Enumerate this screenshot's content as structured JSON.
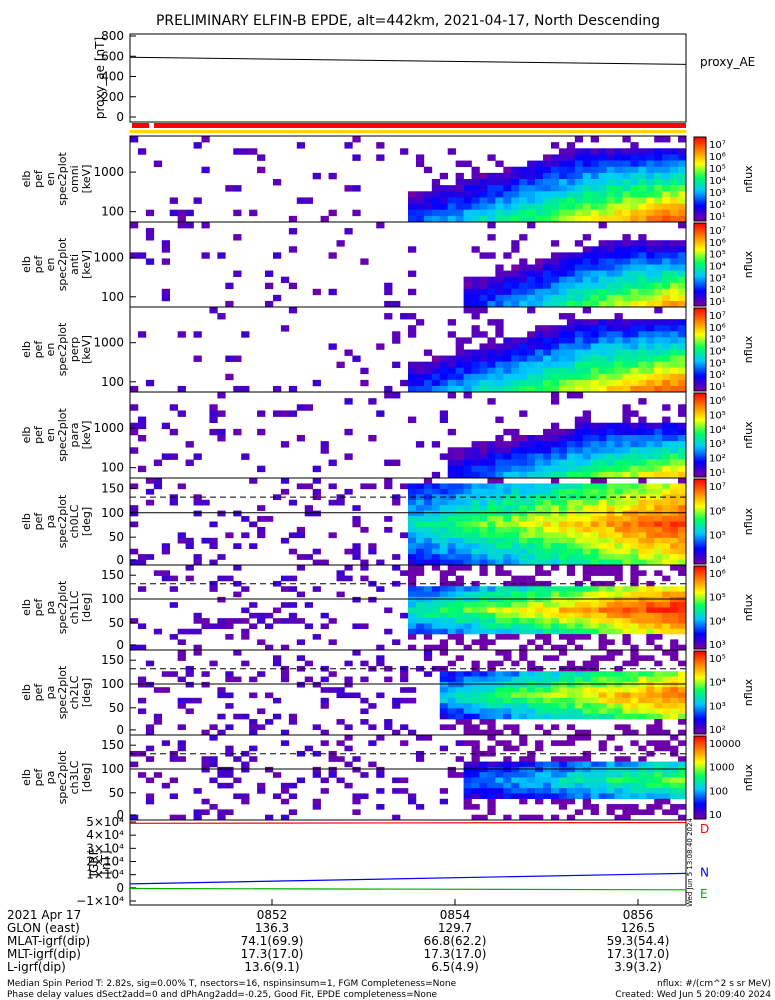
{
  "title": "PRELIMINARY ELFIN-B EPDE, alt=442km, 2021-04-17, North Descending",
  "chart_data": [
    {
      "type": "line",
      "ylabel": "proxy_ae [nT]",
      "legend": "proxy_AE",
      "yticks": [
        "800",
        "600",
        "400",
        "200",
        "0"
      ],
      "ylim": [
        0,
        800
      ],
      "x_minutes": [
        0,
        10
      ],
      "y": [
        590,
        520
      ]
    },
    {
      "type": "heatmap",
      "ylabel": "elb pef en spec2plot omni [keV]",
      "yticks": [
        "1000",
        "100"
      ],
      "colorbar": {
        "label": "nflux",
        "ticks": [
          "10⁷",
          "10⁶",
          "10⁵",
          "10⁴",
          "10³",
          "10²",
          "10¹"
        ]
      }
    },
    {
      "type": "heatmap",
      "ylabel": "elb pef en spec2plot anti [keV]",
      "yticks": [
        "1000",
        "100"
      ],
      "colorbar": {
        "label": "nflux",
        "ticks": [
          "10⁷",
          "10⁶",
          "10⁵",
          "10⁴",
          "10³",
          "10²",
          "10¹"
        ]
      }
    },
    {
      "type": "heatmap",
      "ylabel": "elb pef en spec2plot perp [keV]",
      "yticks": [
        "1000",
        "100"
      ],
      "colorbar": {
        "label": "nflux",
        "ticks": [
          "10⁷",
          "10⁶",
          "10⁵",
          "10⁴",
          "10³",
          "10²",
          "10¹"
        ]
      }
    },
    {
      "type": "heatmap",
      "ylabel": "elb pef en spec2plot para [keV]",
      "yticks": [
        "1000",
        "100"
      ],
      "colorbar": {
        "label": "nflux",
        "ticks": [
          "10⁶",
          "10⁵",
          "10⁴",
          "10³",
          "10²",
          "10¹"
        ]
      }
    },
    {
      "type": "heatmap",
      "ylabel": "elb pef pa spec2plot ch0LC [deg]",
      "yticks": [
        "150",
        "100",
        "50",
        "0"
      ],
      "colorbar": {
        "label": "nflux",
        "ticks": [
          "10⁷",
          "10⁶",
          "10⁵",
          "10⁴"
        ]
      }
    },
    {
      "type": "heatmap",
      "ylabel": "elb pef pa spec2plot ch1LC [deg]",
      "yticks": [
        "150",
        "100",
        "50",
        "0"
      ],
      "colorbar": {
        "label": "nflux",
        "ticks": [
          "10⁶",
          "10⁵",
          "10⁴",
          "10³"
        ]
      }
    },
    {
      "type": "heatmap",
      "ylabel": "elb pef pa spec2plot ch2LC [deg]",
      "yticks": [
        "150",
        "100",
        "50",
        "0"
      ],
      "colorbar": {
        "label": "nflux",
        "ticks": [
          "10⁵",
          "10⁴",
          "10³",
          "10²"
        ]
      }
    },
    {
      "type": "heatmap",
      "ylabel": "elb pef pa spec2plot ch3LC [deg]",
      "yticks": [
        "150",
        "100",
        "50",
        "0"
      ],
      "colorbar": {
        "label": "nflux",
        "ticks": [
          "10000",
          "1000",
          "100",
          "10"
        ]
      }
    },
    {
      "type": "line",
      "ylabel": "IGRF [nT]",
      "yticks": [
        "5×10⁴",
        "4×10⁴",
        "3×10⁴",
        "2×10⁴",
        "1×10⁴",
        "0",
        "−1×10⁴"
      ],
      "ylim": [
        -10000,
        50000
      ],
      "series": [
        {
          "name": "D",
          "color": "#ff0000",
          "values": [
            49000,
            49600
          ]
        },
        {
          "name": "N",
          "color": "#0000ff",
          "values": [
            3000,
            11000
          ]
        },
        {
          "name": "E",
          "color": "#00b000",
          "values": [
            -500,
            -1500
          ]
        }
      ]
    }
  ],
  "xaxis": {
    "rows": [
      [
        "2021 Apr 17",
        "0852",
        "0854",
        "0856"
      ],
      [
        "GLON (east)",
        "136.3",
        "129.7",
        "126.5"
      ],
      [
        "MLAT-igrf(dip)",
        "74.1(69.9)",
        "66.8(62.2)",
        "59.3(54.4)"
      ],
      [
        "MLT-igrf(dip)",
        "17.3(17.0)",
        "17.3(17.0)",
        "17.3(17.0)"
      ],
      [
        "L-igrf(dip)",
        "13.6(9.1)",
        "6.5(4.9)",
        "3.9(3.2)"
      ]
    ]
  },
  "footer": {
    "line1": "Median Spin Period T: 2.82s, sig=0.00% T, nsectors=16, nspinsinsum=1, FGM Completeness=None",
    "line2": "Phase delay values dSect2add=0 and dPhAng2add=-0.25, Good Fit, EPDE completeness=None",
    "units": "nflux: #/(cm^2 s sr MeV)",
    "created": "Created: Wed Jun  5 20:09:40 2024",
    "side_stamp": "Wed Jun  5 13:08:40 2024"
  }
}
